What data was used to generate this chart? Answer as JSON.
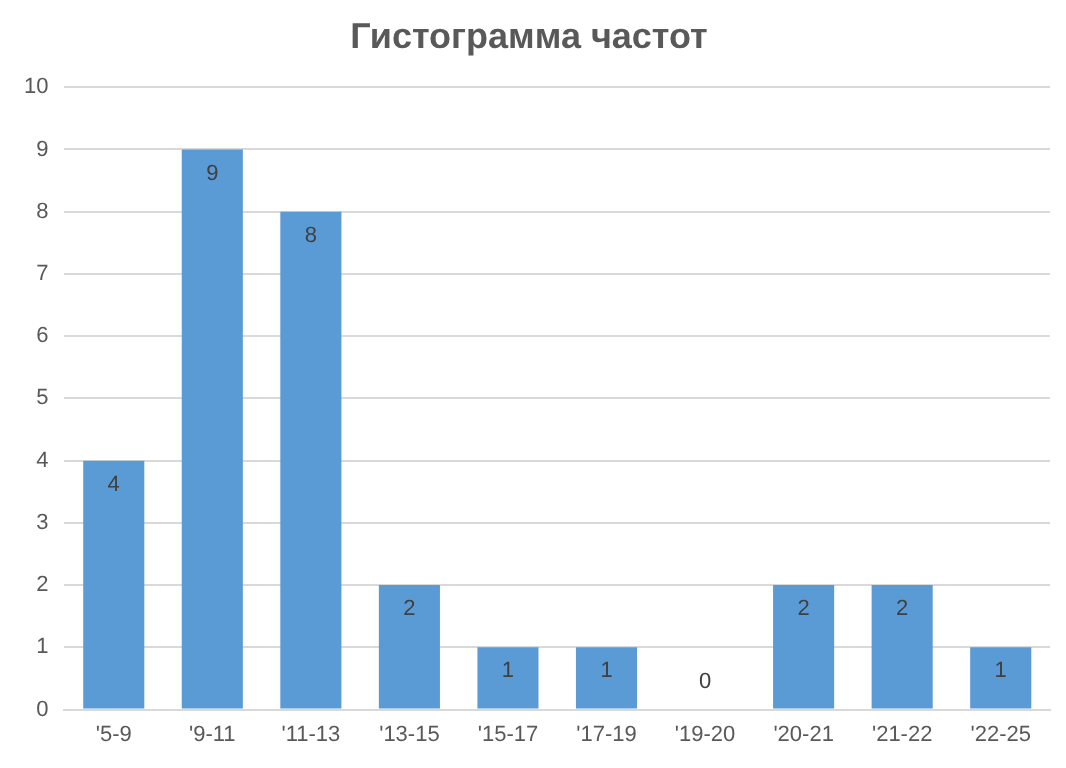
{
  "chart_data": {
    "type": "bar",
    "title": "Гистограмма частот",
    "categories": [
      "'5-9",
      "'9-11",
      "'11-13",
      "'13-15",
      "'15-17",
      "'17-19",
      "'19-20",
      "'20-21",
      "'21-22",
      "'22-25"
    ],
    "values": [
      4,
      9,
      8,
      2,
      1,
      1,
      0,
      2,
      2,
      1
    ],
    "color": "#5b9bd5",
    "ylim": [
      0,
      10
    ],
    "yticks": [
      0,
      1,
      2,
      3,
      4,
      5,
      6,
      7,
      8,
      9,
      10
    ],
    "grid": "y",
    "data_labels": true,
    "legend": false
  }
}
